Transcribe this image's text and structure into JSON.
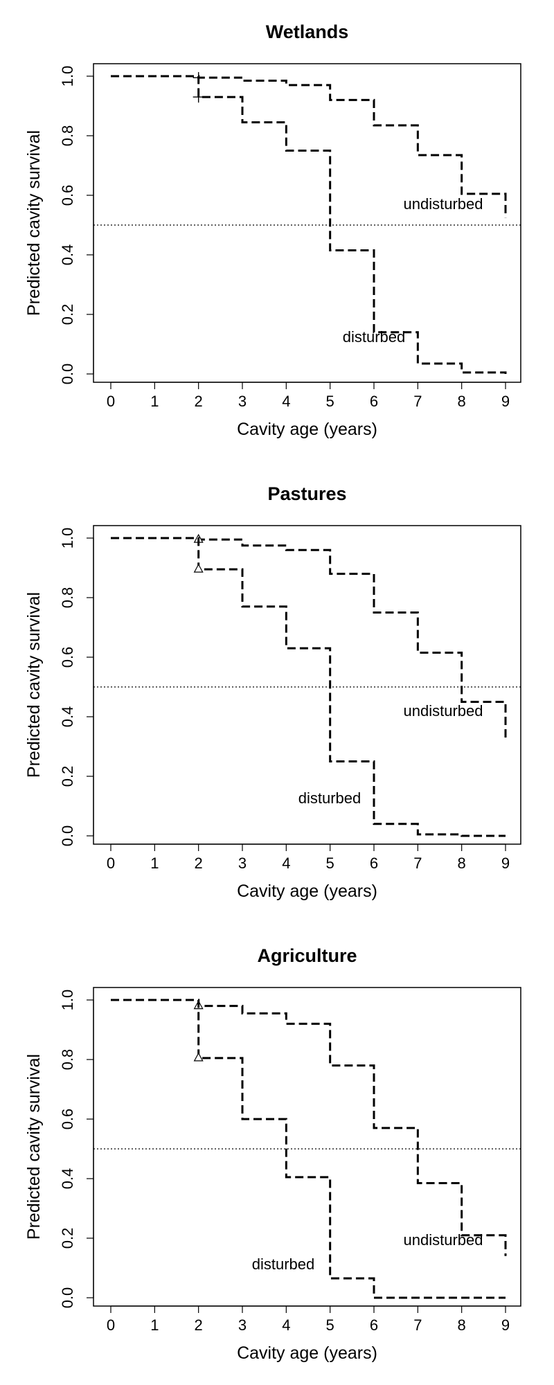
{
  "chart_data": [
    {
      "type": "line",
      "title": "Wetlands",
      "xlabel": "Cavity age (years)",
      "ylabel": "Predicted cavity survival",
      "xlim": [
        0,
        9
      ],
      "ylim": [
        0,
        1
      ],
      "x_ticks": [
        "0",
        "1",
        "2",
        "3",
        "4",
        "5",
        "6",
        "7",
        "8",
        "9"
      ],
      "y_ticks": [
        "0.0",
        "0.2",
        "0.4",
        "0.6",
        "0.8",
        "1.0"
      ],
      "reference_line": 0.5,
      "step": true,
      "grid": false,
      "series": [
        {
          "name": "undisturbed",
          "x": [
            0,
            1,
            2,
            3,
            4,
            5,
            6,
            7,
            8,
            9
          ],
          "values": [
            1.0,
            1.0,
            0.995,
            0.985,
            0.97,
            0.92,
            0.835,
            0.735,
            0.605,
            0.525
          ],
          "marker": "+"
        },
        {
          "name": "disturbed",
          "x": [
            0,
            1,
            2,
            3,
            4,
            5,
            6,
            7,
            8,
            9
          ],
          "values": [
            1.0,
            1.0,
            0.93,
            0.845,
            0.75,
            0.415,
            0.14,
            0.035,
            0.005,
            0.0
          ],
          "marker": "+"
        }
      ]
    },
    {
      "type": "line",
      "title": "Pastures",
      "xlabel": "Cavity age (years)",
      "ylabel": "Predicted cavity survival",
      "xlim": [
        0,
        9
      ],
      "ylim": [
        0,
        1
      ],
      "x_ticks": [
        "0",
        "1",
        "2",
        "3",
        "4",
        "5",
        "6",
        "7",
        "8",
        "9"
      ],
      "y_ticks": [
        "0.0",
        "0.2",
        "0.4",
        "0.6",
        "0.8",
        "1.0"
      ],
      "reference_line": 0.5,
      "step": true,
      "grid": false,
      "series": [
        {
          "name": "undisturbed",
          "x": [
            0,
            1,
            2,
            3,
            4,
            5,
            6,
            7,
            8,
            9
          ],
          "values": [
            1.0,
            1.0,
            0.995,
            0.975,
            0.96,
            0.88,
            0.75,
            0.615,
            0.45,
            0.33
          ],
          "marker": "triangle"
        },
        {
          "name": "disturbed",
          "x": [
            0,
            1,
            2,
            3,
            4,
            5,
            6,
            7,
            8,
            9
          ],
          "values": [
            1.0,
            1.0,
            0.895,
            0.77,
            0.63,
            0.25,
            0.04,
            0.005,
            0.0,
            0.0
          ],
          "marker": "triangle"
        }
      ]
    },
    {
      "type": "line",
      "title": "Agriculture",
      "xlabel": "Cavity age (years)",
      "ylabel": "Predicted cavity survival",
      "xlim": [
        0,
        9
      ],
      "ylim": [
        0,
        1
      ],
      "x_ticks": [
        "0",
        "1",
        "2",
        "3",
        "4",
        "5",
        "6",
        "7",
        "8",
        "9"
      ],
      "y_ticks": [
        "0.0",
        "0.2",
        "0.4",
        "0.6",
        "0.8",
        "1.0"
      ],
      "reference_line": 0.5,
      "step": true,
      "grid": false,
      "series": [
        {
          "name": "undisturbed",
          "x": [
            0,
            1,
            2,
            3,
            4,
            5,
            6,
            7,
            8,
            9
          ],
          "values": [
            1.0,
            1.0,
            0.98,
            0.955,
            0.92,
            0.78,
            0.57,
            0.385,
            0.21,
            0.14
          ],
          "marker": "triangle"
        },
        {
          "name": "disturbed",
          "x": [
            0,
            1,
            2,
            3,
            4,
            5,
            6,
            7,
            8,
            9
          ],
          "values": [
            1.0,
            1.0,
            0.805,
            0.6,
            0.405,
            0.065,
            0.0,
            0.0,
            0.0,
            0.0
          ],
          "marker": "triangle"
        }
      ]
    }
  ]
}
